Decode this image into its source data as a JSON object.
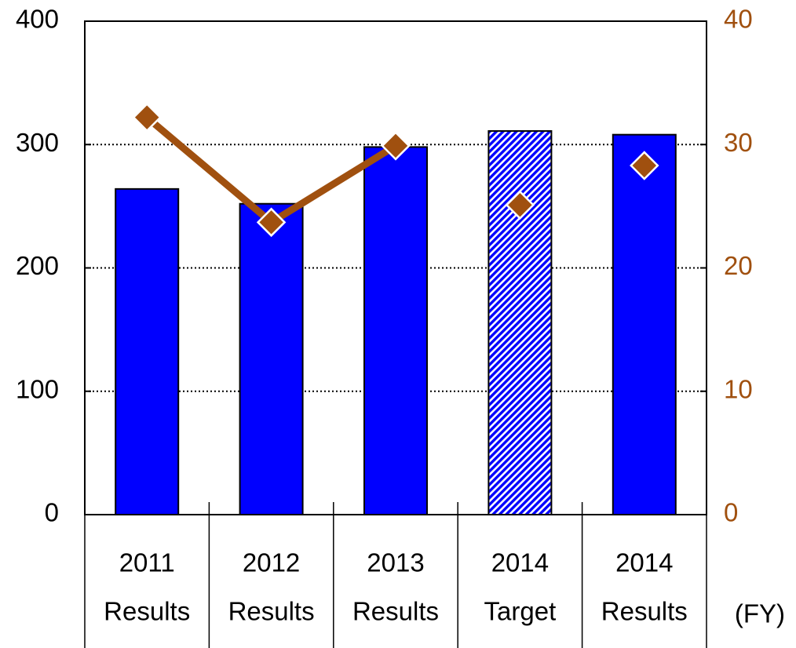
{
  "chart_data": {
    "type": "bar",
    "categories": [
      [
        "2011",
        "Results"
      ],
      [
        "2012",
        "Results"
      ],
      [
        "2013",
        "Results"
      ],
      [
        "2014",
        "Target"
      ],
      [
        "2014",
        "Results"
      ]
    ],
    "series": [
      {
        "type": "bar",
        "color": "#0000ff",
        "hatched": [
          false,
          false,
          false,
          true,
          false
        ],
        "values": [
          264,
          252,
          298,
          311,
          308
        ]
      },
      {
        "type": "line",
        "axis": "y2",
        "color": "#a0500f",
        "values": [
          32.2,
          23.7,
          29.9,
          null,
          null
        ]
      },
      {
        "type": "marker",
        "axis": "y2",
        "color": "#a0500f",
        "values": [
          null,
          null,
          null,
          25.1,
          28.3
        ]
      }
    ],
    "ylim": [
      0,
      400
    ],
    "yticks": [
      0,
      100,
      200,
      300,
      400
    ],
    "y2lim": [
      0,
      40
    ],
    "y2ticks": [
      0,
      10,
      20,
      30,
      40
    ],
    "y2color": "#a0500f",
    "grid": true,
    "x_unit": "(FY)"
  }
}
